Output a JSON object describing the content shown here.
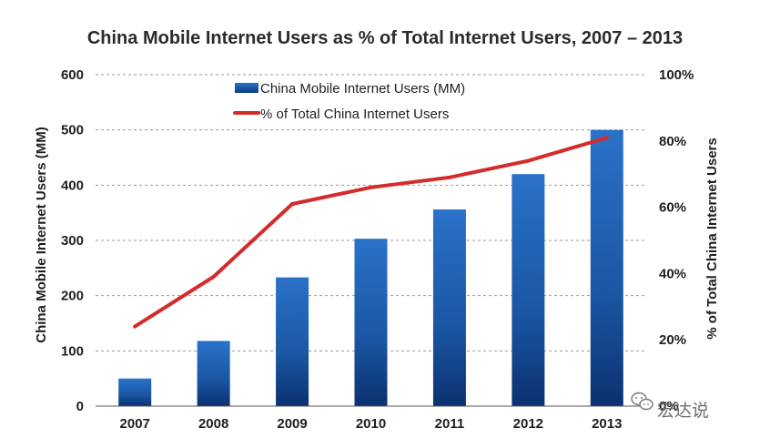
{
  "chart_data": {
    "type": "bar",
    "title": "China Mobile Internet Users as % of Total Internet Users, 2007 – 2013",
    "categories": [
      "2007",
      "2008",
      "2009",
      "2010",
      "2011",
      "2012",
      "2013"
    ],
    "series": [
      {
        "name": "China Mobile Internet Users (MM)",
        "type": "bar",
        "axis": "left",
        "values": [
          50,
          118,
          233,
          303,
          356,
          420,
          500
        ],
        "color": "#1f5fb3"
      },
      {
        "name": "% of Total China Internet Users",
        "type": "line",
        "axis": "right",
        "values": [
          24,
          39,
          61,
          66,
          69,
          74,
          81
        ],
        "color": "#d42b2b"
      }
    ],
    "ylabel": "China Mobile Internet Users (MM)",
    "ylim": [
      0,
      600
    ],
    "yticks": [
      "0",
      "100",
      "200",
      "300",
      "400",
      "500",
      "600"
    ],
    "y2label": "% of Total China Internet Users",
    "y2lim": [
      0,
      100
    ],
    "y2ticks": [
      "0%",
      "20%",
      "40%",
      "60%",
      "80%",
      "100%"
    ],
    "grid": true,
    "legend_position": "top-center",
    "watermark": "宏达说"
  }
}
